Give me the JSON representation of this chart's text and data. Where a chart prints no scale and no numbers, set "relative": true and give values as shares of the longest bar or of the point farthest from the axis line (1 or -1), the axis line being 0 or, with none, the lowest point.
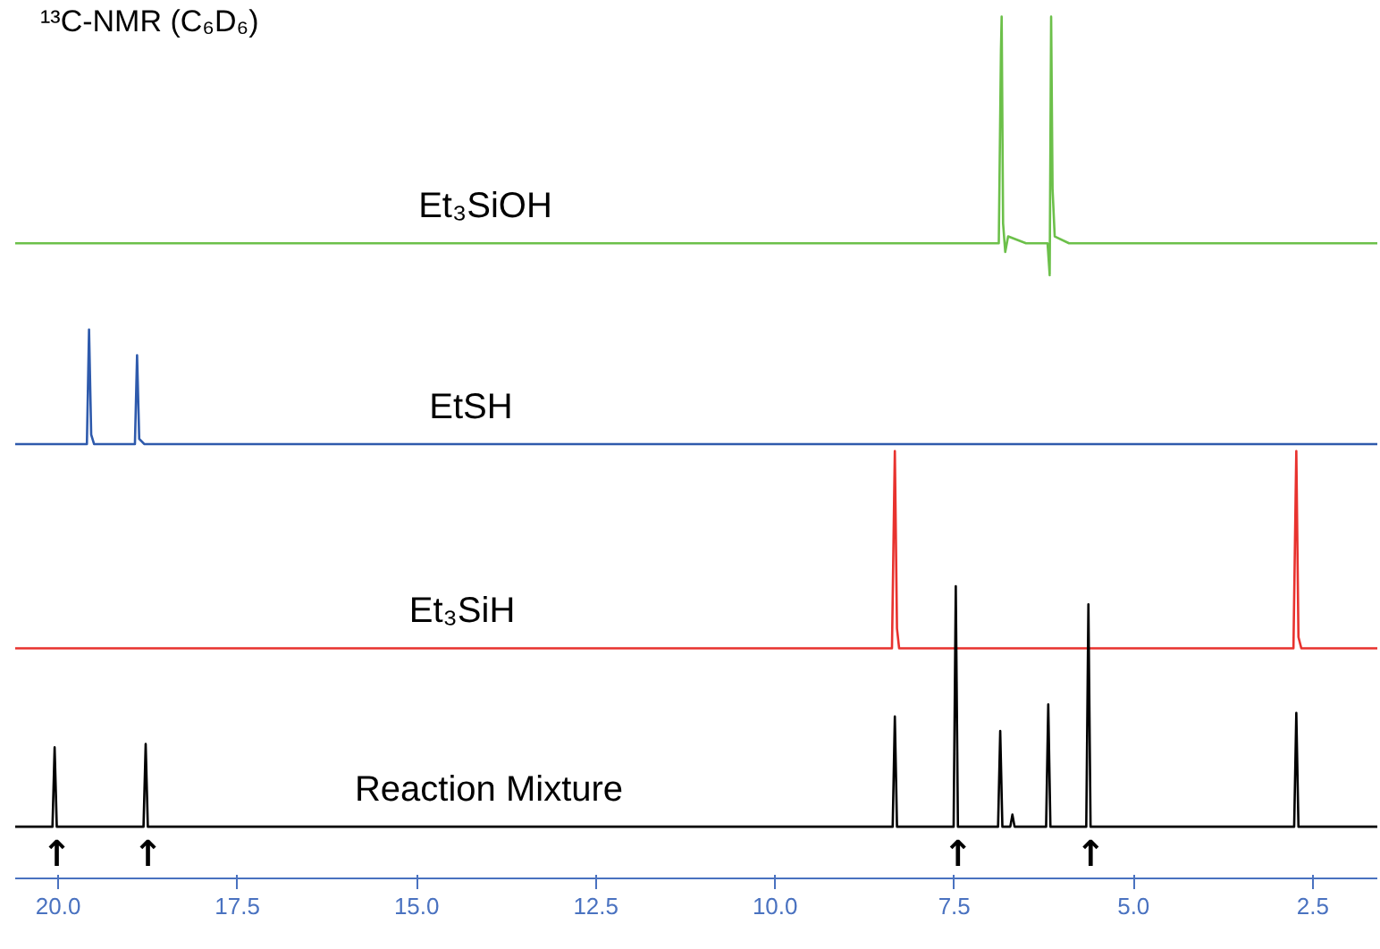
{
  "chart_data": {
    "type": "line",
    "relative": true,
    "title": "¹³C-NMR (C₆D₆)",
    "tick_labels": "x",
    "xlim": [
      20.6,
      1.6
    ],
    "xticks": [
      {
        "value": 20,
        "label": "20.0"
      },
      {
        "value": 17.5,
        "label": "17.5"
      },
      {
        "value": 15,
        "label": "15.0"
      },
      {
        "value": 12.5,
        "label": "12.5"
      },
      {
        "value": 10,
        "label": "10.0"
      },
      {
        "value": 7.5,
        "label": "7.5"
      },
      {
        "value": 5,
        "label": "5.0"
      },
      {
        "value": 2.5,
        "label": "2.5"
      }
    ],
    "series": [
      {
        "name": "Et₃SiOH",
        "color": "#6cc04a",
        "x": [
          20.6,
          6.88,
          6.85,
          6.84,
          6.82,
          6.79,
          6.75,
          6.5,
          6.2,
          6.17,
          6.15,
          6.13,
          6.1,
          5.9,
          1.6
        ],
        "values": [
          0.737,
          0.737,
          0.96,
          1,
          0.76,
          0.727,
          0.745,
          0.737,
          0.737,
          0.7,
          1,
          0.8,
          0.745,
          0.737,
          0.737
        ]
      },
      {
        "name": "EtSH",
        "color": "#2e5aac",
        "x": [
          20.6,
          19.6,
          19.57,
          19.54,
          19.5,
          18.93,
          18.9,
          18.87,
          18.8,
          1.6
        ],
        "values": [
          0.504,
          0.504,
          0.637,
          0.515,
          0.504,
          0.504,
          0.607,
          0.51,
          0.504,
          0.504
        ]
      },
      {
        "name": "Et₃SiH",
        "color": "#e8322e",
        "x": [
          20.6,
          8.37,
          8.34,
          8.33,
          8.3,
          8.27,
          2.77,
          2.74,
          2.73,
          2.7,
          2.66,
          1.6
        ],
        "values": [
          0.267,
          0.267,
          0.44,
          0.496,
          0.29,
          0.267,
          0.267,
          0.44,
          0.496,
          0.28,
          0.267,
          0.267
        ]
      },
      {
        "name": "Reaction Mixture",
        "color": "#000000",
        "x": [
          20.6,
          20.08,
          20.05,
          20.02,
          18.81,
          18.78,
          18.75,
          8.36,
          8.33,
          8.3,
          7.51,
          7.48,
          7.45,
          6.89,
          6.86,
          6.83,
          6.72,
          6.69,
          6.66,
          6.22,
          6.19,
          6.16,
          5.66,
          5.63,
          5.6,
          2.76,
          2.73,
          2.7,
          1.6
        ],
        "values": [
          0.06,
          0.06,
          0.152,
          0.06,
          0.06,
          0.156,
          0.06,
          0.06,
          0.188,
          0.06,
          0.06,
          0.339,
          0.06,
          0.06,
          0.171,
          0.06,
          0.06,
          0.074,
          0.06,
          0.06,
          0.202,
          0.06,
          0.06,
          0.318,
          0.06,
          0.06,
          0.192,
          0.06,
          0.06
        ]
      }
    ],
    "annotations": [
      {
        "text": "↑",
        "x": 20.02,
        "y": 0.06
      },
      {
        "text": "↑",
        "x": 18.75,
        "y": 0.06
      },
      {
        "text": "↑",
        "x": 7.45,
        "y": 0.06
      },
      {
        "text": "↑",
        "x": 5.6,
        "y": 0.06
      }
    ]
  }
}
